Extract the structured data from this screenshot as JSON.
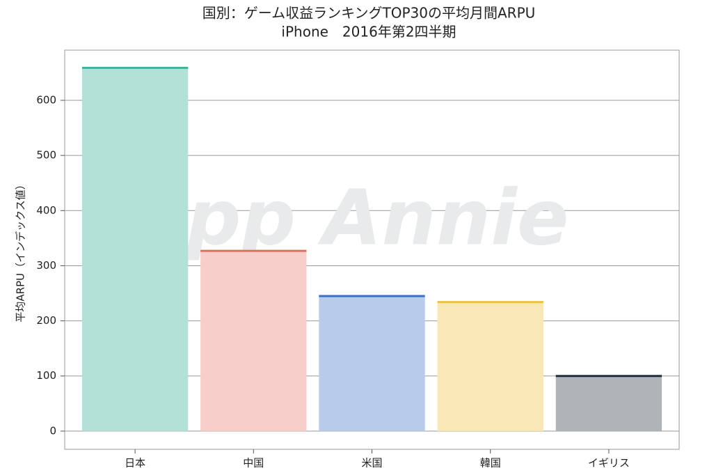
{
  "chart_data": {
    "type": "bar",
    "title": "国別：ゲーム収益ランキングTOP30の平均月間ARPU",
    "subtitle": "iPhone　2016年第2四半期",
    "ylabel": "平均ARPU（インデックス値）",
    "watermark": "App Annie",
    "categories": [
      "日本",
      "中国",
      "米国",
      "韓国",
      "イギリス"
    ],
    "values": [
      659,
      327,
      245,
      234,
      100
    ],
    "colors": [
      "#3ab39a",
      "#d9715e",
      "#3a6fc4",
      "#e8c53e",
      "#1f2d3a"
    ],
    "fill_colors": [
      "#b3e1d7",
      "#f8ceca",
      "#b8cbea",
      "#f9e7b6",
      "#b0b4b8"
    ],
    "ylim": [
      -33,
      691
    ],
    "yticks": [
      0,
      100,
      200,
      300,
      400,
      500,
      600
    ],
    "grid": true
  }
}
